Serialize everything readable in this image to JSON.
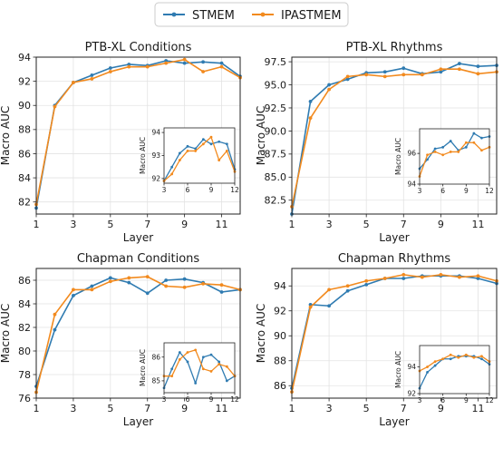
{
  "legend": {
    "placement": "top-center",
    "entries": [
      {
        "name": "STMEM",
        "color": "#2f7bb1"
      },
      {
        "name": "IPASTMEM",
        "color": "#f28a1e"
      }
    ]
  },
  "chart_data": [
    {
      "type": "line",
      "title": "PTB-XL Conditions",
      "xlabel": "Layer",
      "ylabel": "Macro AUC",
      "x": [
        1,
        2,
        3,
        4,
        5,
        6,
        7,
        8,
        9,
        10,
        11,
        12
      ],
      "xlim": [
        1,
        12
      ],
      "ylim": [
        81,
        94
      ],
      "xticks": [
        1,
        3,
        5,
        7,
        9,
        11
      ],
      "yticks": [
        82,
        84,
        86,
        88,
        90,
        92,
        94
      ],
      "ytick_labels": [
        "82",
        "84",
        "86",
        "88",
        "90",
        "92",
        "94"
      ],
      "grid": true,
      "series": [
        {
          "name": "STMEM",
          "values": [
            81.5,
            90.0,
            91.9,
            92.5,
            93.1,
            93.4,
            93.3,
            93.7,
            93.5,
            93.6,
            93.5,
            92.4
          ]
        },
        {
          "name": "IPASTMEM",
          "values": [
            81.8,
            89.9,
            91.9,
            92.2,
            92.8,
            93.2,
            93.2,
            93.5,
            93.8,
            92.8,
            93.2,
            92.3
          ]
        }
      ],
      "inset": {
        "ylabel": "Macro AUC",
        "x": [
          3,
          4,
          5,
          6,
          7,
          8,
          9,
          10,
          11,
          12
        ],
        "xlim": [
          3,
          12
        ],
        "ylim": [
          91.8,
          94.2
        ],
        "xticks": [
          3,
          6,
          9,
          12
        ],
        "yticks": [
          92,
          93,
          94
        ],
        "ytick_labels": [
          "92",
          "93",
          "94"
        ],
        "series": [
          {
            "name": "STMEM",
            "values": [
              91.9,
              92.5,
              93.1,
              93.4,
              93.3,
              93.7,
              93.5,
              93.6,
              93.5,
              92.4
            ]
          },
          {
            "name": "IPASTMEM",
            "values": [
              91.9,
              92.2,
              92.8,
              93.2,
              93.2,
              93.5,
              93.8,
              92.8,
              93.2,
              92.3
            ]
          }
        ]
      }
    },
    {
      "type": "line",
      "title": "PTB-XL Rhythms",
      "xlabel": "Layer",
      "ylabel": "Macro AUC",
      "x": [
        1,
        2,
        3,
        4,
        5,
        6,
        7,
        8,
        9,
        10,
        11,
        12
      ],
      "xlim": [
        1,
        12
      ],
      "ylim": [
        81.0,
        98.0
      ],
      "xticks": [
        1,
        3,
        5,
        7,
        9,
        11
      ],
      "yticks": [
        82.5,
        85.0,
        87.5,
        90.0,
        92.5,
        95.0,
        97.5
      ],
      "ytick_labels": [
        "82.5",
        "85.0",
        "87.5",
        "90.0",
        "92.5",
        "95.0",
        "97.5"
      ],
      "grid": true,
      "series": [
        {
          "name": "STMEM",
          "values": [
            81.0,
            93.2,
            95.0,
            95.6,
            96.3,
            96.4,
            96.8,
            96.2,
            96.4,
            97.3,
            97.0,
            97.1
          ]
        },
        {
          "name": "IPASTMEM",
          "values": [
            81.8,
            91.4,
            94.5,
            95.9,
            96.1,
            95.9,
            96.1,
            96.1,
            96.7,
            96.7,
            96.2,
            96.4
          ]
        }
      ],
      "inset": {
        "ylabel": "Macro AUC",
        "x": [
          3,
          4,
          5,
          6,
          7,
          8,
          9,
          10,
          11,
          12
        ],
        "xlim": [
          3,
          12
        ],
        "ylim": [
          94.0,
          97.6
        ],
        "xticks": [
          3,
          6,
          9,
          12
        ],
        "yticks": [
          94,
          96
        ],
        "ytick_labels": [
          "94",
          "96"
        ],
        "series": [
          {
            "name": "STMEM",
            "values": [
              95.0,
              95.6,
              96.3,
              96.4,
              96.8,
              96.2,
              96.4,
              97.3,
              97.0,
              97.1
            ]
          },
          {
            "name": "IPASTMEM",
            "values": [
              94.5,
              95.9,
              96.1,
              95.9,
              96.1,
              96.1,
              96.7,
              96.7,
              96.2,
              96.4
            ]
          }
        ]
      }
    },
    {
      "type": "line",
      "title": "Chapman Conditions",
      "xlabel": "Layer",
      "ylabel": "Macro AUC",
      "x": [
        1,
        2,
        3,
        4,
        5,
        6,
        7,
        8,
        9,
        10,
        11,
        12
      ],
      "xlim": [
        1,
        12
      ],
      "ylim": [
        76,
        87
      ],
      "xticks": [
        1,
        3,
        5,
        7,
        9,
        11
      ],
      "yticks": [
        76,
        78,
        80,
        82,
        84,
        86
      ],
      "ytick_labels": [
        "76",
        "78",
        "80",
        "82",
        "84",
        "86"
      ],
      "grid": true,
      "series": [
        {
          "name": "STMEM",
          "values": [
            77.0,
            81.8,
            84.7,
            85.5,
            86.2,
            85.8,
            84.9,
            86.0,
            86.1,
            85.8,
            85.0,
            85.2
          ]
        },
        {
          "name": "IPASTMEM",
          "values": [
            76.5,
            83.1,
            85.2,
            85.2,
            85.9,
            86.2,
            86.3,
            85.5,
            85.4,
            85.7,
            85.6,
            85.2
          ]
        }
      ],
      "inset": {
        "ylabel": "Macro AUC",
        "x": [
          3,
          4,
          5,
          6,
          7,
          8,
          9,
          10,
          11,
          12
        ],
        "xlim": [
          3,
          12
        ],
        "ylim": [
          84.5,
          86.6
        ],
        "xticks": [
          3,
          6,
          9,
          12
        ],
        "yticks": [
          85,
          86
        ],
        "ytick_labels": [
          "85",
          "86"
        ],
        "series": [
          {
            "name": "STMEM",
            "values": [
              84.7,
              85.5,
              86.2,
              85.8,
              84.9,
              86.0,
              86.1,
              85.8,
              85.0,
              85.2
            ]
          },
          {
            "name": "IPASTMEM",
            "values": [
              85.2,
              85.2,
              85.9,
              86.2,
              86.3,
              85.5,
              85.4,
              85.7,
              85.6,
              85.2
            ]
          }
        ]
      }
    },
    {
      "type": "line",
      "title": "Chapman Rhythms",
      "xlabel": "Layer",
      "ylabel": "Macro AUC",
      "x": [
        1,
        2,
        3,
        4,
        5,
        6,
        7,
        8,
        9,
        10,
        11,
        12
      ],
      "xlim": [
        1,
        12
      ],
      "ylim": [
        85,
        95.4
      ],
      "xticks": [
        1,
        3,
        5,
        7,
        9,
        11
      ],
      "yticks": [
        86,
        88,
        90,
        92,
        94
      ],
      "ytick_labels": [
        "86",
        "88",
        "90",
        "92",
        "94"
      ],
      "grid": true,
      "series": [
        {
          "name": "STMEM",
          "values": [
            85.8,
            92.5,
            92.4,
            93.6,
            94.1,
            94.6,
            94.6,
            94.8,
            94.8,
            94.8,
            94.6,
            94.2
          ]
        },
        {
          "name": "IPASTMEM",
          "values": [
            85.5,
            92.3,
            93.7,
            94.0,
            94.4,
            94.6,
            94.9,
            94.7,
            94.9,
            94.7,
            94.8,
            94.4
          ]
        }
      ],
      "inset": {
        "ylabel": "Macro AUC",
        "x": [
          3,
          4,
          5,
          6,
          7,
          8,
          9,
          10,
          11,
          12
        ],
        "xlim": [
          3,
          12
        ],
        "ylim": [
          92,
          95.6
        ],
        "xticks": [
          3,
          6,
          9,
          12
        ],
        "yticks": [
          92,
          94
        ],
        "ytick_labels": [
          "92",
          "94"
        ],
        "series": [
          {
            "name": "STMEM",
            "values": [
              92.4,
              93.6,
              94.1,
              94.6,
              94.6,
              94.8,
              94.8,
              94.8,
              94.6,
              94.2
            ]
          },
          {
            "name": "IPASTMEM",
            "values": [
              93.7,
              94.0,
              94.4,
              94.6,
              94.9,
              94.7,
              94.9,
              94.7,
              94.8,
              94.4
            ]
          }
        ]
      }
    }
  ]
}
